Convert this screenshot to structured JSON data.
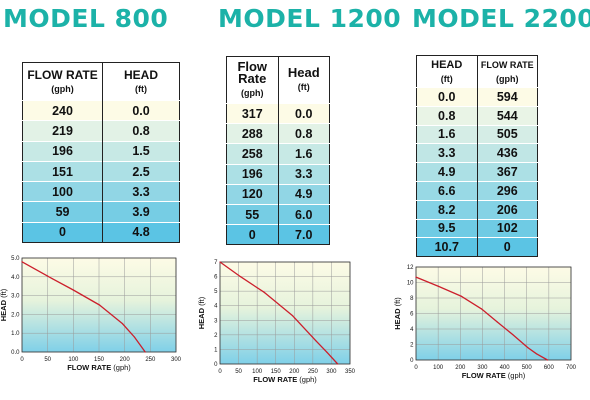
{
  "colors": {
    "title": "#1cb2a8",
    "curve": "#cc1f2c",
    "row_top": "#fdfbe6",
    "row_bottom": "#5bc4e4"
  },
  "titles": {
    "m800": "MODEL 800",
    "m1200": "MODEL 1200",
    "m2200": "MODEL 2200"
  },
  "table_800": {
    "headers": [
      {
        "label": "FLOW RATE",
        "unit": "(gph)"
      },
      {
        "label": "HEAD",
        "unit": "(ft)"
      }
    ],
    "rows": [
      [
        "240",
        "0.0"
      ],
      [
        "219",
        "0.8"
      ],
      [
        "196",
        "1.5"
      ],
      [
        "151",
        "2.5"
      ],
      [
        "100",
        "3.3"
      ],
      [
        "59",
        "3.9"
      ],
      [
        "0",
        "4.8"
      ]
    ]
  },
  "table_1200": {
    "headers": [
      {
        "label": "Flow Rate",
        "unit": "(gph)"
      },
      {
        "label": "Head",
        "unit": "(ft)"
      }
    ],
    "rows": [
      [
        "317",
        "0.0"
      ],
      [
        "288",
        "0.8"
      ],
      [
        "258",
        "1.6"
      ],
      [
        "196",
        "3.3"
      ],
      [
        "120",
        "4.9"
      ],
      [
        "55",
        "6.0"
      ],
      [
        "0",
        "7.0"
      ]
    ]
  },
  "table_2200": {
    "headers": [
      {
        "label": "HEAD",
        "unit": "(ft)"
      },
      {
        "label": "FLOW RATE",
        "unit": "(gph)"
      }
    ],
    "rows": [
      [
        "0.0",
        "594"
      ],
      [
        "0.8",
        "544"
      ],
      [
        "1.6",
        "505"
      ],
      [
        "3.3",
        "436"
      ],
      [
        "4.9",
        "367"
      ],
      [
        "6.6",
        "296"
      ],
      [
        "8.2",
        "206"
      ],
      [
        "9.5",
        "102"
      ],
      [
        "10.7",
        "0"
      ]
    ]
  },
  "chart_data": [
    {
      "type": "line",
      "xlabel": "FLOW RATE (gph)",
      "ylabel": "HEAD (ft)",
      "xlim": [
        0,
        300
      ],
      "ylim": [
        0,
        5
      ],
      "xticks": [
        "0",
        "50",
        "100",
        "150",
        "200",
        "250",
        "300"
      ],
      "yticks": [
        "0.0",
        "1.0",
        "2.0",
        "3.0",
        "4.0",
        "5.0"
      ],
      "grid": true,
      "x": [
        0,
        59,
        100,
        151,
        196,
        219,
        240
      ],
      "y": [
        4.8,
        3.9,
        3.3,
        2.5,
        1.5,
        0.8,
        0.0
      ]
    },
    {
      "type": "line",
      "xlabel": "FLOW RATE (gph)",
      "ylabel": "HEAD (ft)",
      "xlim": [
        0,
        350
      ],
      "ylim": [
        0,
        7
      ],
      "xticks": [
        "0",
        "50",
        "100",
        "150",
        "200",
        "250",
        "300",
        "350"
      ],
      "yticks": [
        "0",
        "1",
        "2",
        "3",
        "4",
        "5",
        "6",
        "7"
      ],
      "grid": true,
      "x": [
        0,
        55,
        120,
        196,
        258,
        288,
        317
      ],
      "y": [
        7.0,
        6.0,
        4.9,
        3.3,
        1.6,
        0.8,
        0.0
      ]
    },
    {
      "type": "line",
      "xlabel": "FLOW RATE (gph)",
      "ylabel": "HEAD (ft)",
      "xlim": [
        0,
        700
      ],
      "ylim": [
        0,
        12
      ],
      "xticks": [
        "0",
        "100",
        "200",
        "300",
        "400",
        "500",
        "600",
        "700"
      ],
      "yticks": [
        "0",
        "2",
        "4",
        "6",
        "8",
        "10",
        "12"
      ],
      "grid": true,
      "x": [
        0,
        102,
        206,
        296,
        367,
        436,
        505,
        544,
        594
      ],
      "y": [
        10.7,
        9.5,
        8.2,
        6.6,
        4.9,
        3.3,
        1.6,
        0.8,
        0.0
      ]
    }
  ]
}
